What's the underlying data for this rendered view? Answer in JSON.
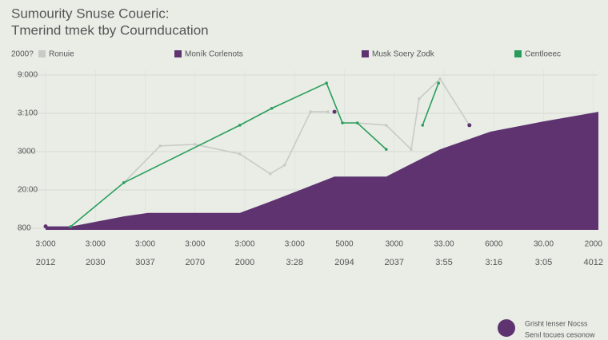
{
  "chart_data": {
    "type": "line",
    "title": "Sumourity Snuse Coueric:",
    "subtitle": "Tmerind tmek tby Cournducation",
    "legend_title": "2000?",
    "xlim": [
      0,
      11.1
    ],
    "ylim": [
      0,
      4
    ],
    "yticks": [
      {
        "value": 4,
        "label": "9:000"
      },
      {
        "value": 3,
        "label": "3:100"
      },
      {
        "value": 2,
        "label": "3000"
      },
      {
        "value": 1,
        "label": "20:00"
      },
      {
        "value": 0,
        "label": "800"
      }
    ],
    "xticks": [
      {
        "value": 0,
        "label": "3:000"
      },
      {
        "value": 1,
        "label": "3:000"
      },
      {
        "value": 2,
        "label": "3:000"
      },
      {
        "value": 3,
        "label": "3:000"
      },
      {
        "value": 4,
        "label": "3:000"
      },
      {
        "value": 5,
        "label": "3:000"
      },
      {
        "value": 6,
        "label": "5000"
      },
      {
        "value": 7,
        "label": "3000"
      },
      {
        "value": 8,
        "label": "33.00"
      },
      {
        "value": 9,
        "label": "6000"
      },
      {
        "value": 10,
        "label": "30.00"
      },
      {
        "value": 11,
        "label": "2000"
      }
    ],
    "x_sublabels": [
      "2012",
      "2030",
      "3037",
      "2070",
      "2000",
      "3:28",
      "2094",
      "2037",
      "3:55",
      "3:16",
      "3:05",
      "4012"
    ],
    "grid": true,
    "series": [
      {
        "name": "Ronuie",
        "type": "line",
        "color": "#c9cac6",
        "x": [
          1.57,
          2.3,
          3.0,
          3.9,
          4.51,
          4.8,
          5.32,
          5.67,
          null,
          6.26,
          6.84,
          7.34,
          7.5,
          7.92,
          8.51
        ],
        "values": [
          1.19,
          2.15,
          2.19,
          1.94,
          1.42,
          1.65,
          3.04,
          3.04,
          null,
          2.75,
          2.69,
          2.06,
          3.38,
          3.9,
          2.69
        ]
      },
      {
        "name": "Moník Corlenots",
        "type": "area",
        "color": "#5e3370",
        "x": [
          0,
          0.53,
          1.57,
          2.06,
          3.9,
          4.54,
          5.8,
          6.84,
          7.92,
          8.93,
          10.0,
          11.1
        ],
        "values": [
          0.05,
          0.05,
          0.31,
          0.4,
          0.4,
          0.71,
          1.35,
          1.35,
          2.06,
          2.52,
          2.79,
          3.04
        ]
      },
      {
        "name": "Musk Soery Zodk",
        "type": "scatter",
        "color": "#5e3370",
        "x": [
          5.8,
          8.51
        ],
        "values": [
          3.04,
          2.69
        ]
      },
      {
        "name": "Centloeec",
        "type": "line",
        "color": "#2a9d5c",
        "x": [
          0.5,
          1.57,
          3.9,
          4.54,
          5.64,
          5.96,
          6.26,
          6.84,
          null,
          7.57,
          7.89
        ],
        "values": [
          0.04,
          1.19,
          2.69,
          3.13,
          3.79,
          2.75,
          2.75,
          2.06,
          null,
          2.69,
          3.79
        ]
      }
    ]
  },
  "footer": [
    "Grisht lenser Nocss",
    "Senıl tocues cesonow"
  ]
}
